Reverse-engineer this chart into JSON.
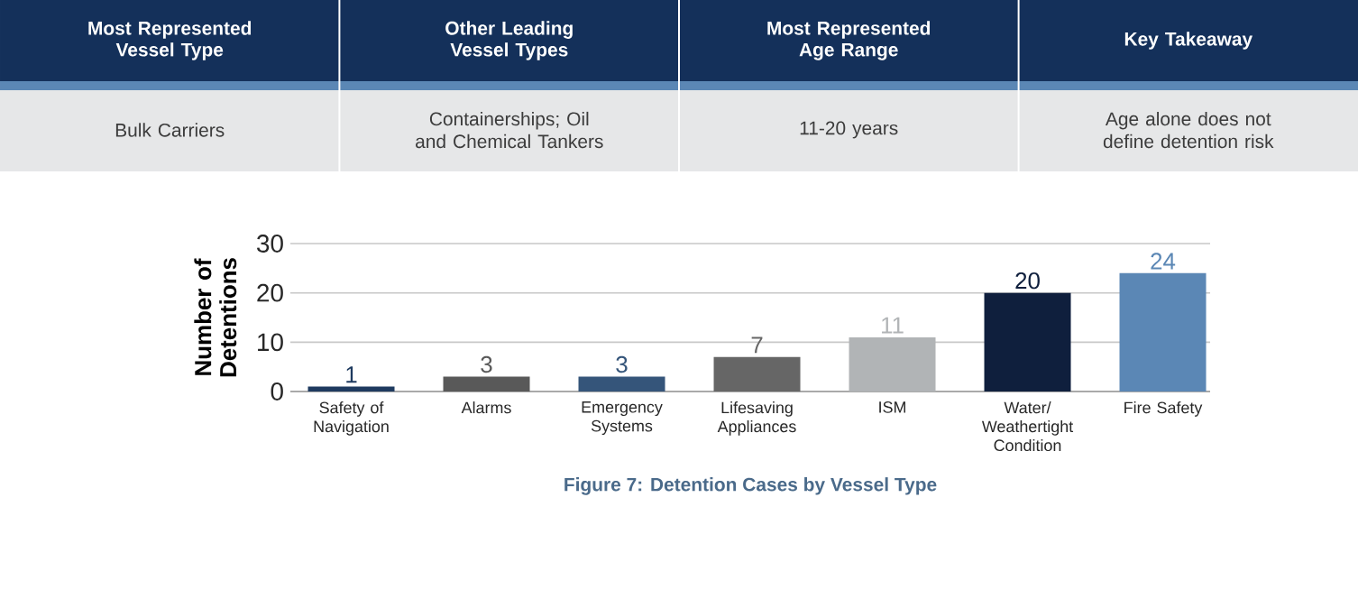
{
  "chart_data": [
    {
      "type": "other",
      "categories": [
        "Most Represented Vessel Type",
        "Other Leading Vessel Types",
        "Most Represented Age Range",
        "Key Takeaway"
      ],
      "annotations": [
        "Bulk Carriers",
        "Containerships; Oil and Chemical Tankers",
        "11-20 years",
        "Age alone does not define detention risk"
      ]
    },
    {
      "type": "bar",
      "title": "Figure 7: Detention Cases by Vessel Type",
      "ylabel": "Number of Detentions",
      "categories": [
        "Safety of Navigation",
        "Alarms",
        "Emergency Systems",
        "Lifesaving Appliances",
        "ISM",
        "Water/ Weathertight Condition",
        "Fire Safety"
      ],
      "values": [
        1,
        3,
        3,
        7,
        11,
        20,
        24
      ],
      "colors": [
        "#1e3a5f",
        "#595959",
        "#35557a",
        "#666666",
        "#b1b4b6",
        "#0f1f3d",
        "#5b87b5"
      ],
      "ylim": [
        0,
        30
      ],
      "yticks": [
        0,
        10,
        20,
        30
      ],
      "grid": "y",
      "data_labels": true
    }
  ]
}
